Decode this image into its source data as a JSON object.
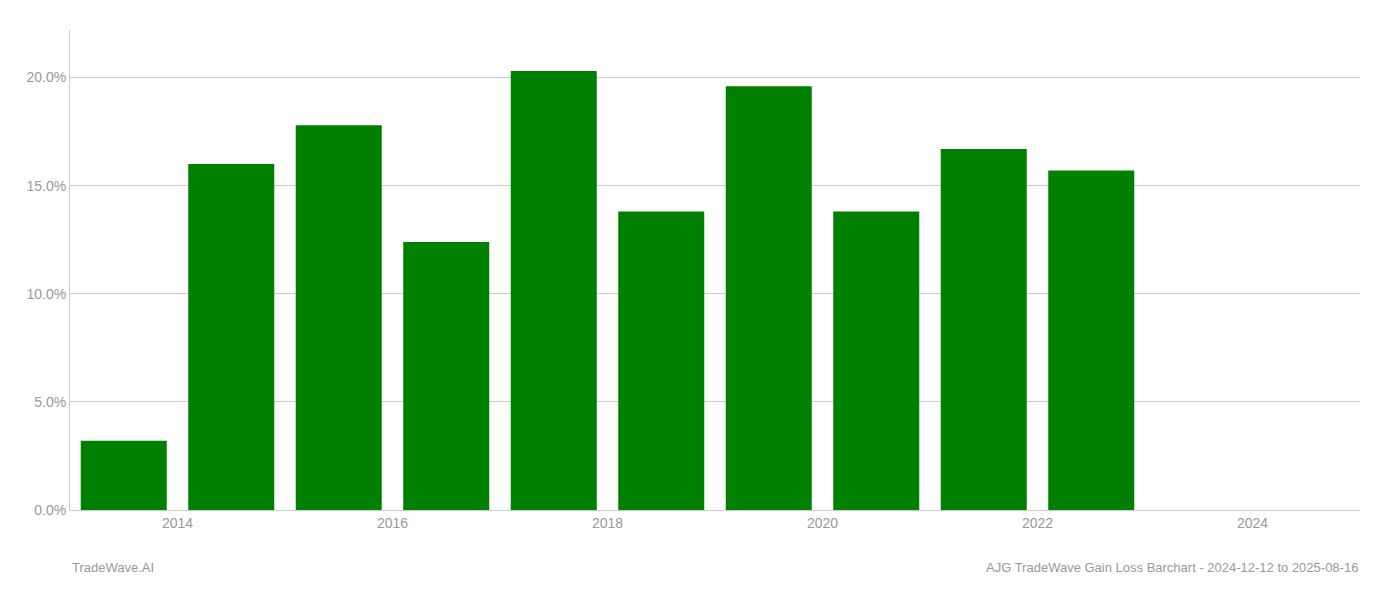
{
  "chart_data": {
    "type": "bar",
    "x": [
      2013.5,
      2014.5,
      2015.5,
      2016.5,
      2017.5,
      2018.5,
      2019.5,
      2020.5,
      2021.5,
      2022.5
    ],
    "values": [
      0.032,
      0.16,
      0.178,
      0.124,
      0.203,
      0.138,
      0.196,
      0.138,
      0.167,
      0.157
    ],
    "color": "#008000",
    "xlim": [
      2013.0,
      2025.0
    ],
    "xticks": [
      2014,
      2016,
      2018,
      2020,
      2022,
      2024
    ],
    "ylim": [
      0,
      0.222
    ],
    "yticks": [
      {
        "value": 0.0,
        "label": "0.0%"
      },
      {
        "value": 0.05,
        "label": "5.0%"
      },
      {
        "value": 0.1,
        "label": "10.0%"
      },
      {
        "value": 0.15,
        "label": "15.0%"
      },
      {
        "value": 0.2,
        "label": "20.0%"
      }
    ],
    "grid": true,
    "annotations": [
      "TradeWave.AI",
      "AJG TradeWave Gain Loss Barchart - 2024-12-12 to 2025-08-16"
    ]
  }
}
